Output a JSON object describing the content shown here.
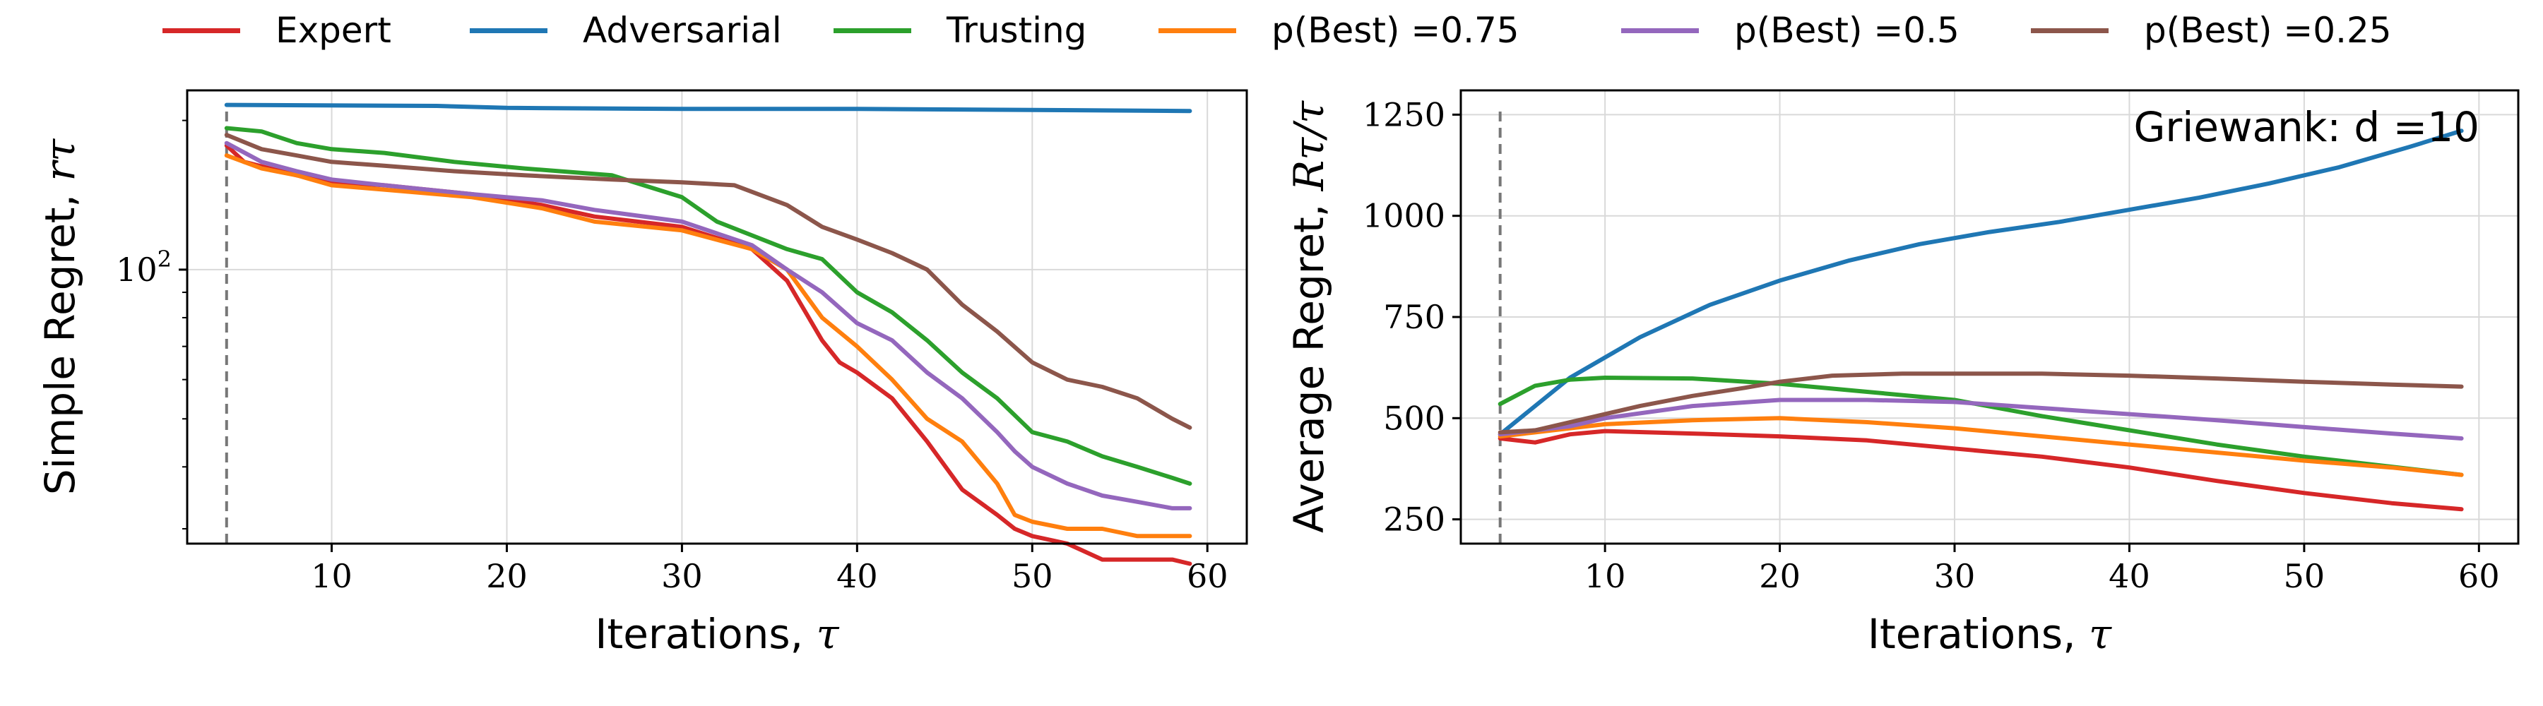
{
  "legend": {
    "items": [
      {
        "label": "Expert",
        "color": "#d62728"
      },
      {
        "label": "Adversarial",
        "color": "#1f77b4"
      },
      {
        "label": "Trusting",
        "color": "#2ca02c"
      },
      {
        "label": "p(Best) =0.75",
        "color": "#ff7f0e"
      },
      {
        "label": "p(Best) =0.5",
        "color": "#9467bd"
      },
      {
        "label": "p(Best) =0.25",
        "color": "#8c564b"
      }
    ]
  },
  "chart_data": [
    {
      "type": "line",
      "xlabel": "Iterations, τ",
      "ylabel": "Simple Regret, r_τ",
      "yscale": "log",
      "xlim": [
        1.75,
        62.25
      ],
      "ylim": [
        28,
        230
      ],
      "xticks": [
        10,
        20,
        30,
        40,
        50,
        60
      ],
      "yticks": [
        100
      ],
      "ytick_labels": [
        "10^2"
      ],
      "grid": true,
      "vline_x": 4,
      "series": [
        {
          "name": "Expert",
          "x": [
            4,
            5,
            8,
            10,
            13,
            18,
            22,
            25,
            30,
            34,
            36,
            38,
            39,
            40,
            42,
            44,
            46,
            48,
            49,
            50,
            52,
            54,
            58,
            59
          ],
          "y": [
            178,
            165,
            155,
            150,
            148,
            142,
            135,
            128,
            122,
            110,
            95,
            72,
            65,
            62,
            55,
            45,
            36,
            32,
            30,
            29,
            28,
            26,
            26,
            25.5
          ]
        },
        {
          "name": "Adversarial",
          "x": [
            4,
            16,
            20,
            30,
            40,
            50,
            59
          ],
          "y": [
            215,
            214,
            212,
            211,
            211,
            210,
            209
          ]
        },
        {
          "name": "Trusting",
          "x": [
            4,
            6,
            8,
            10,
            13,
            17,
            21,
            26,
            30,
            32,
            36,
            38,
            40,
            42,
            44,
            46,
            48,
            50,
            52,
            54,
            56,
            58,
            59
          ],
          "y": [
            193,
            190,
            180,
            175,
            172,
            165,
            160,
            155,
            140,
            125,
            110,
            105,
            90,
            82,
            72,
            62,
            55,
            47,
            45,
            42,
            40,
            38,
            37
          ]
        },
        {
          "name": "p(Best) =0.75",
          "x": [
            4,
            6,
            8,
            10,
            13,
            18,
            22,
            25,
            30,
            34,
            36,
            38,
            40,
            42,
            44,
            46,
            48,
            49,
            50,
            52,
            54,
            56,
            58,
            59
          ],
          "y": [
            170,
            160,
            155,
            148,
            145,
            140,
            133,
            125,
            120,
            110,
            100,
            80,
            70,
            60,
            50,
            45,
            37,
            32,
            31,
            30,
            30,
            29,
            29,
            29
          ]
        },
        {
          "name": "p(Best) =0.5",
          "x": [
            4,
            6,
            8,
            10,
            13,
            18,
            22,
            25,
            30,
            34,
            36,
            38,
            40,
            42,
            44,
            46,
            48,
            49,
            50,
            52,
            54,
            56,
            58,
            59
          ],
          "y": [
            180,
            165,
            158,
            152,
            148,
            142,
            138,
            132,
            125,
            112,
            100,
            90,
            78,
            72,
            62,
            55,
            47,
            43,
            40,
            37,
            35,
            34,
            33,
            33
          ]
        },
        {
          "name": "p(Best) =0.25",
          "x": [
            4,
            6,
            8,
            10,
            13,
            17,
            21,
            26,
            30,
            33,
            36,
            38,
            40,
            42,
            44,
            46,
            48,
            50,
            52,
            54,
            56,
            58,
            59
          ],
          "y": [
            187,
            175,
            170,
            165,
            162,
            158,
            155,
            152,
            150,
            148,
            135,
            122,
            115,
            108,
            100,
            85,
            75,
            65,
            60,
            58,
            55,
            50,
            48
          ]
        }
      ]
    },
    {
      "type": "line",
      "xlabel": "Iterations, τ",
      "ylabel": "Average Regret, R_τ/τ",
      "xlim": [
        1.75,
        62.25
      ],
      "ylim": [
        190,
        1310
      ],
      "xticks": [
        10,
        20,
        30,
        40,
        50,
        60
      ],
      "yticks": [
        250,
        500,
        750,
        1000,
        1250
      ],
      "grid": true,
      "vline_x": 4,
      "annotation": "Griewank: d =10",
      "series": [
        {
          "name": "Expert",
          "x": [
            4,
            6,
            8,
            10,
            15,
            20,
            25,
            30,
            35,
            40,
            45,
            50,
            55,
            59
          ],
          "y": [
            450,
            440,
            460,
            468,
            462,
            455,
            445,
            425,
            405,
            378,
            345,
            315,
            290,
            275
          ]
        },
        {
          "name": "Adversarial",
          "x": [
            4,
            8,
            12,
            16,
            20,
            24,
            28,
            32,
            36,
            40,
            44,
            48,
            52,
            56,
            59
          ],
          "y": [
            460,
            600,
            700,
            780,
            840,
            890,
            930,
            960,
            985,
            1015,
            1045,
            1080,
            1120,
            1170,
            1210
          ]
        },
        {
          "name": "Trusting",
          "x": [
            4,
            6,
            8,
            10,
            15,
            20,
            25,
            30,
            35,
            40,
            45,
            50,
            55,
            59
          ],
          "y": [
            535,
            580,
            595,
            600,
            598,
            585,
            565,
            545,
            505,
            470,
            435,
            405,
            380,
            360
          ]
        },
        {
          "name": "p(Best) =0.75",
          "x": [
            4,
            6,
            8,
            10,
            15,
            20,
            25,
            30,
            35,
            40,
            45,
            50,
            55,
            59
          ],
          "y": [
            455,
            465,
            475,
            485,
            495,
            500,
            490,
            475,
            455,
            435,
            415,
            395,
            378,
            360
          ]
        },
        {
          "name": "p(Best) =0.5",
          "x": [
            4,
            6,
            8,
            10,
            15,
            20,
            25,
            30,
            35,
            40,
            45,
            50,
            55,
            59
          ],
          "y": [
            460,
            470,
            480,
            500,
            530,
            545,
            545,
            540,
            525,
            510,
            495,
            478,
            462,
            450
          ]
        },
        {
          "name": "p(Best) =0.25",
          "x": [
            4,
            6,
            8,
            10,
            12,
            15,
            18,
            20,
            23,
            27,
            30,
            35,
            40,
            45,
            50,
            55,
            59
          ],
          "y": [
            465,
            470,
            490,
            510,
            530,
            555,
            575,
            590,
            605,
            610,
            610,
            610,
            605,
            598,
            590,
            583,
            578
          ]
        }
      ]
    }
  ]
}
